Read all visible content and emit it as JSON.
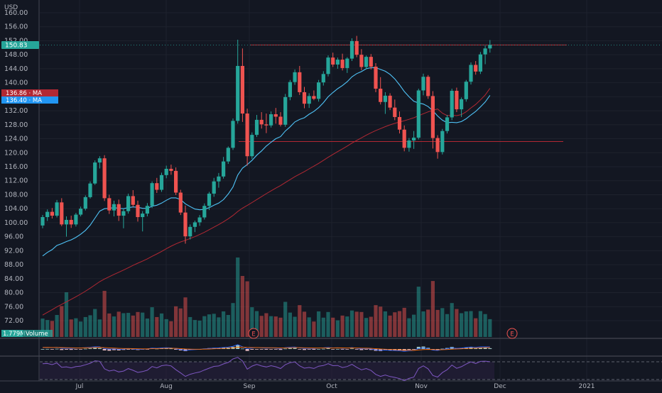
{
  "currency_label": "USD",
  "price_axis_ticks": [
    "160.00",
    "156.00",
    "152.00",
    "148.00",
    "144.00",
    "140.00",
    "136.00",
    "132.00",
    "128.00",
    "124.00",
    "120.00",
    "116.00",
    "112.00",
    "108.00",
    "104.00",
    "100.00",
    "96.00",
    "92.00",
    "88.00",
    "84.00",
    "80.00",
    "76.00",
    "72.00"
  ],
  "price_tag": {
    "label": "150.83",
    "color": "#26a69a"
  },
  "ma_tags": [
    {
      "label": "136.86 · MA",
      "color": "#b22833"
    },
    {
      "label": "136.40 · MA",
      "color": "#2196f3"
    }
  ],
  "volume_tag": {
    "value": "1.779M",
    "label": "Volume"
  },
  "earnings_marker": "E",
  "time_axis_labels": [
    "Jul",
    "Aug",
    "Sep",
    "Oct",
    "Nov",
    "Dec",
    "2021"
  ],
  "colors": {
    "up": "#26a69a",
    "down": "#ef5350",
    "ma_fast": "#4fc3f7",
    "ma_slow": "#b22833",
    "rsi": "#7e57c2",
    "level": "#b22833"
  },
  "chart_data": {
    "type": "candlestick",
    "ylim": [
      70,
      162
    ],
    "grid": true,
    "horizontal_levels": [
      150.8,
      123.2
    ],
    "candles": [
      [
        99.2,
        102.2,
        98.4,
        101.6
      ],
      [
        101.6,
        103.8,
        100.5,
        103.1
      ],
      [
        103.1,
        104.2,
        101.2,
        102.0
      ],
      [
        102.0,
        106.5,
        101.5,
        105.8
      ],
      [
        105.8,
        107.0,
        99.0,
        99.5
      ],
      [
        99.5,
        101.8,
        96.0,
        100.8
      ],
      [
        100.8,
        102.0,
        98.5,
        99.5
      ],
      [
        99.5,
        102.8,
        98.9,
        102.3
      ],
      [
        102.3,
        104.6,
        101.8,
        104.0
      ],
      [
        104.0,
        107.8,
        103.5,
        107.3
      ],
      [
        107.3,
        111.8,
        106.9,
        111.2
      ],
      [
        111.2,
        117.8,
        110.8,
        117.2
      ],
      [
        117.2,
        119.0,
        115.5,
        118.4
      ],
      [
        118.4,
        119.3,
        106.2,
        107.0
      ],
      [
        107.0,
        108.0,
        102.5,
        103.5
      ],
      [
        103.5,
        106.3,
        101.8,
        105.3
      ],
      [
        105.3,
        106.6,
        100.5,
        102.0
      ],
      [
        102.0,
        104.0,
        98.4,
        103.3
      ],
      [
        103.3,
        108.3,
        102.6,
        107.6
      ],
      [
        107.6,
        109.3,
        104.5,
        105.1
      ],
      [
        105.1,
        106.3,
        100.3,
        101.6
      ],
      [
        101.6,
        103.3,
        97.5,
        102.6
      ],
      [
        102.6,
        105.6,
        101.8,
        104.8
      ],
      [
        104.8,
        111.8,
        104.2,
        111.3
      ],
      [
        111.3,
        112.8,
        108.5,
        109.4
      ],
      [
        109.4,
        114.3,
        108.8,
        113.6
      ],
      [
        113.6,
        116.3,
        112.7,
        115.4
      ],
      [
        115.4,
        116.6,
        113.7,
        114.8
      ],
      [
        114.8,
        115.8,
        107.9,
        108.6
      ],
      [
        108.6,
        109.4,
        102.2,
        102.9
      ],
      [
        102.9,
        104.9,
        94.0,
        96.1
      ],
      [
        96.1,
        99.5,
        95.2,
        98.8
      ],
      [
        98.8,
        100.6,
        97.3,
        100.1
      ],
      [
        100.1,
        102.2,
        99.1,
        101.5
      ],
      [
        101.5,
        105.5,
        100.9,
        104.8
      ],
      [
        104.8,
        108.8,
        103.6,
        108.3
      ],
      [
        108.3,
        112.8,
        107.4,
        111.8
      ],
      [
        111.8,
        114.2,
        110.0,
        113.2
      ],
      [
        113.2,
        118.8,
        112.6,
        117.5
      ],
      [
        117.5,
        121.8,
        116.8,
        121.4
      ],
      [
        121.4,
        129.8,
        120.8,
        129.1
      ],
      [
        129.1,
        152.3,
        128.3,
        144.8
      ],
      [
        144.8,
        149.8,
        128.8,
        131.2
      ],
      [
        131.2,
        132.6,
        116.3,
        119.0
      ],
      [
        119.0,
        125.8,
        118.2,
        125.1
      ],
      [
        125.1,
        130.8,
        124.5,
        129.4
      ],
      [
        129.4,
        131.6,
        126.9,
        128.1
      ],
      [
        128.1,
        131.2,
        125.6,
        127.8
      ],
      [
        127.8,
        131.8,
        127.2,
        131.0
      ],
      [
        131.0,
        132.8,
        128.3,
        130.3
      ],
      [
        130.3,
        131.6,
        127.5,
        128.0
      ],
      [
        128.0,
        136.8,
        127.4,
        135.9
      ],
      [
        135.9,
        140.8,
        135.0,
        140.2
      ],
      [
        140.2,
        143.8,
        139.4,
        143.0
      ],
      [
        143.0,
        144.8,
        136.5,
        137.3
      ],
      [
        137.3,
        138.8,
        132.7,
        134.0
      ],
      [
        134.0,
        137.0,
        132.8,
        136.2
      ],
      [
        136.2,
        137.8,
        135.0,
        135.4
      ],
      [
        135.4,
        140.8,
        134.6,
        140.1
      ],
      [
        140.1,
        143.3,
        139.2,
        142.5
      ],
      [
        142.5,
        147.8,
        141.8,
        147.2
      ],
      [
        147.2,
        148.6,
        144.5,
        145.2
      ],
      [
        145.2,
        147.2,
        144.0,
        146.6
      ],
      [
        146.6,
        148.3,
        143.5,
        144.2
      ],
      [
        144.2,
        147.3,
        142.8,
        146.9
      ],
      [
        146.9,
        152.7,
        146.2,
        151.9
      ],
      [
        151.9,
        153.4,
        147.3,
        148.0
      ],
      [
        148.0,
        149.6,
        143.6,
        144.5
      ],
      [
        144.5,
        147.8,
        143.8,
        147.4
      ],
      [
        147.4,
        148.2,
        143.8,
        144.6
      ],
      [
        144.6,
        145.6,
        137.3,
        138.3
      ],
      [
        138.3,
        141.6,
        133.8,
        134.5
      ],
      [
        134.5,
        137.3,
        131.1,
        136.3
      ],
      [
        136.3,
        137.0,
        132.2,
        132.9
      ],
      [
        132.9,
        135.2,
        129.3,
        130.2
      ],
      [
        130.2,
        131.8,
        125.5,
        126.6
      ],
      [
        126.6,
        127.8,
        120.4,
        121.4
      ],
      [
        121.4,
        124.2,
        120.3,
        123.5
      ],
      [
        123.5,
        126.2,
        121.1,
        124.3
      ],
      [
        124.3,
        138.3,
        123.8,
        137.8
      ],
      [
        137.8,
        142.6,
        136.4,
        141.7
      ],
      [
        141.7,
        142.2,
        135.4,
        136.2
      ],
      [
        136.2,
        137.6,
        121.2,
        124.2
      ],
      [
        124.2,
        125.0,
        118.3,
        120.2
      ],
      [
        120.2,
        126.8,
        119.5,
        126.2
      ],
      [
        126.2,
        130.8,
        125.5,
        130.1
      ],
      [
        130.1,
        138.3,
        129.3,
        137.7
      ],
      [
        137.7,
        138.6,
        131.6,
        132.4
      ],
      [
        132.4,
        135.8,
        130.2,
        135.3
      ],
      [
        135.3,
        140.8,
        134.6,
        140.3
      ],
      [
        140.3,
        145.8,
        139.5,
        145.1
      ],
      [
        145.1,
        146.2,
        142.3,
        143.2
      ],
      [
        143.2,
        148.8,
        142.5,
        148.1
      ],
      [
        148.1,
        150.6,
        145.3,
        149.8
      ],
      [
        149.8,
        152.2,
        148.6,
        150.8
      ]
    ],
    "ma_fast": [
      90.5,
      91.5,
      92.3,
      93.5,
      94.0,
      94.6,
      95.1,
      95.8,
      96.7,
      97.8,
      99.3,
      101.3,
      103.3,
      104.0,
      104.1,
      104.3,
      104.1,
      104.0,
      104.3,
      104.5,
      104.4,
      104.1,
      104.1,
      104.7,
      105.0,
      105.6,
      106.4,
      107.1,
      107.1,
      106.6,
      105.4,
      104.6,
      103.9,
      103.7,
      103.8,
      104.3,
      105.0,
      105.6,
      106.6,
      108.2,
      110.2,
      113.6,
      115.6,
      116.6,
      117.8,
      119.3,
      120.5,
      121.9,
      123.0,
      124.0,
      124.6,
      126.2,
      127.4,
      128.8,
      129.5,
      130.0,
      131.0,
      131.8,
      132.9,
      134.3,
      136.0,
      137.2,
      138.3,
      139.2,
      140.3,
      141.7,
      142.6,
      143.2,
      144.0,
      144.3,
      144.3,
      143.8,
      143.3,
      142.4,
      141.1,
      139.4,
      137.5,
      136.0,
      134.7,
      134.2,
      133.9,
      133.2,
      132.0,
      130.5,
      129.3,
      128.6,
      128.7,
      128.6,
      128.9,
      129.7,
      130.8,
      131.8,
      133.1,
      134.5,
      136.4
    ]
  }
}
